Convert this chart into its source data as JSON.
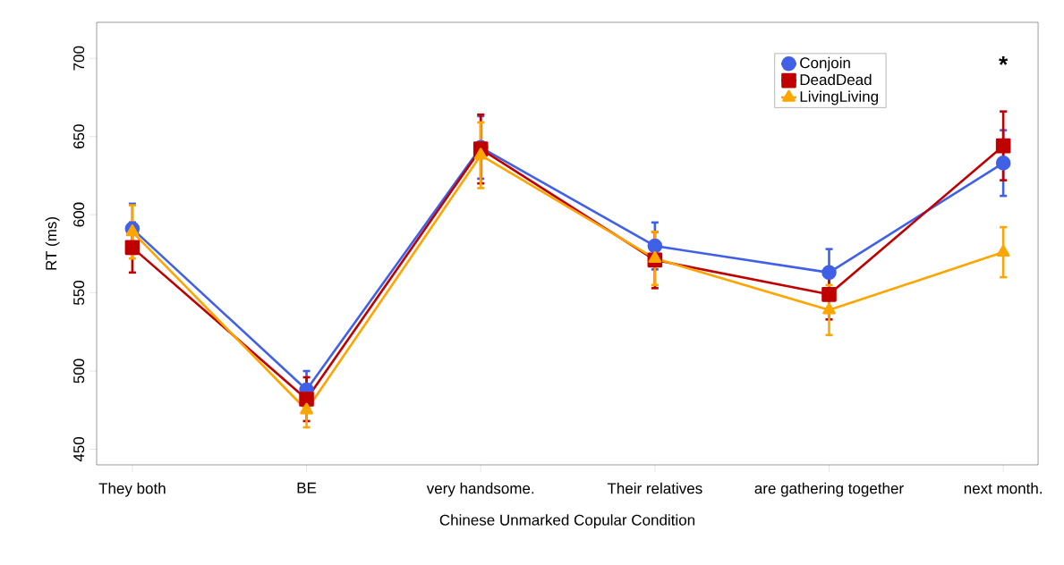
{
  "chart_data": {
    "type": "line",
    "xlabel": "Chinese Unmarked Copular Condition",
    "ylabel": "RT (ms)",
    "categories": [
      "They both",
      "BE",
      "very handsome.",
      "Their relatives",
      "are gathering together",
      "next month."
    ],
    "series": [
      {
        "name": "Conjoin",
        "color": "#4060e8",
        "marker": "circle",
        "values": [
          591,
          488,
          643,
          580,
          563,
          633
        ],
        "errors": [
          16,
          12,
          20,
          15,
          15,
          21
        ]
      },
      {
        "name": "DeadDead",
        "color": "#c00000",
        "marker": "square",
        "values": [
          579,
          482,
          642,
          571,
          549,
          644
        ],
        "errors": [
          16,
          14,
          22,
          18,
          16,
          22
        ]
      },
      {
        "name": "LivingLiving",
        "color": "#ffa500",
        "marker": "triangle",
        "values": [
          589,
          475,
          638,
          572,
          539,
          576
        ],
        "errors": [
          17,
          11,
          21,
          17,
          16,
          16
        ]
      }
    ],
    "ylim": [
      440,
      723
    ],
    "yticks": [
      450,
      500,
      550,
      600,
      650,
      700
    ],
    "annotations": [
      "*"
    ],
    "legend": "top right",
    "grid": false
  }
}
